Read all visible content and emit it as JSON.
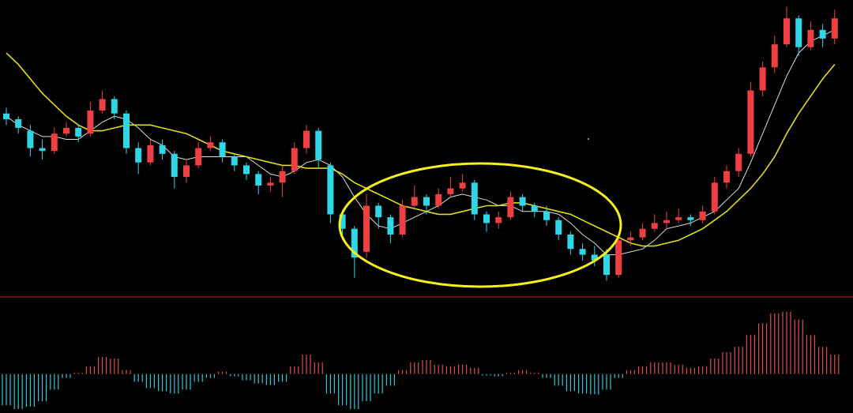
{
  "chart_data": [
    {
      "type": "candlestick",
      "ylim": [
        0,
        100
      ],
      "up_color": "#ee3f42",
      "down_color": "#2fd6e6",
      "ohlc": [
        [
          62,
          64,
          58,
          60
        ],
        [
          60,
          61,
          55,
          57
        ],
        [
          56,
          58,
          47,
          50
        ],
        [
          50,
          53,
          46,
          49
        ],
        [
          49,
          57,
          48,
          55
        ],
        [
          55,
          59,
          54,
          57
        ],
        [
          57,
          58,
          52,
          54
        ],
        [
          55,
          66,
          54,
          63
        ],
        [
          63,
          70,
          62,
          67
        ],
        [
          67,
          68,
          60,
          62
        ],
        [
          62,
          63,
          48,
          50
        ],
        [
          50,
          52,
          41,
          45
        ],
        [
          45,
          53,
          44,
          51
        ],
        [
          51,
          53,
          46,
          48
        ],
        [
          48,
          49,
          36,
          40
        ],
        [
          40,
          46,
          38,
          44
        ],
        [
          44,
          52,
          43,
          50
        ],
        [
          50,
          54,
          49,
          52
        ],
        [
          52,
          53,
          45,
          47
        ],
        [
          47,
          48,
          42,
          44
        ],
        [
          44,
          45,
          39,
          41
        ],
        [
          41,
          42,
          34,
          37
        ],
        [
          37,
          40,
          35,
          38
        ],
        [
          38,
          44,
          33,
          42
        ],
        [
          42,
          52,
          41,
          50
        ],
        [
          50,
          58,
          48,
          56
        ],
        [
          56,
          57,
          43,
          46
        ],
        [
          44,
          45,
          24,
          27
        ],
        [
          27,
          28,
          19,
          22
        ],
        [
          22,
          23,
          5,
          12
        ],
        [
          14,
          34,
          12,
          30
        ],
        [
          30,
          31,
          22,
          26
        ],
        [
          26,
          27,
          17,
          20
        ],
        [
          20,
          32,
          19,
          30
        ],
        [
          30,
          37,
          29,
          33
        ],
        [
          33,
          34,
          27,
          30
        ],
        [
          30,
          36,
          29,
          34
        ],
        [
          34,
          40,
          33,
          36
        ],
        [
          36,
          41,
          35,
          38
        ],
        [
          38,
          39,
          25,
          27
        ],
        [
          27,
          28,
          21,
          24
        ],
        [
          24,
          28,
          22,
          26
        ],
        [
          26,
          35,
          25,
          33
        ],
        [
          33,
          34,
          28,
          30
        ],
        [
          30,
          31,
          26,
          28
        ],
        [
          28,
          30,
          23,
          25
        ],
        [
          25,
          26,
          18,
          20
        ],
        [
          20,
          21,
          13,
          15
        ],
        [
          15,
          17,
          11,
          13
        ],
        [
          13,
          16,
          9,
          11
        ],
        [
          13,
          15,
          4,
          6
        ],
        [
          6,
          20,
          5,
          18
        ],
        [
          18,
          21,
          16,
          19
        ],
        [
          19,
          24,
          18,
          22
        ],
        [
          22,
          27,
          21,
          24
        ],
        [
          24,
          28,
          22,
          25
        ],
        [
          25,
          29,
          24,
          26
        ],
        [
          26,
          27,
          23,
          25
        ],
        [
          25,
          30,
          24,
          28
        ],
        [
          28,
          40,
          27,
          38
        ],
        [
          38,
          44,
          36,
          42
        ],
        [
          42,
          50,
          40,
          48
        ],
        [
          48,
          73,
          47,
          70
        ],
        [
          70,
          80,
          68,
          78
        ],
        [
          78,
          89,
          76,
          86
        ],
        [
          86,
          99,
          85,
          95
        ],
        [
          95,
          96,
          82,
          85
        ],
        [
          85,
          94,
          84,
          91
        ],
        [
          91,
          93,
          85,
          88
        ],
        [
          88,
          98,
          86,
          95
        ]
      ],
      "series": [
        {
          "color": "#dddddd",
          "values": [
            61,
            58,
            56,
            54,
            54,
            53,
            53,
            56,
            59,
            61,
            60,
            57,
            53,
            51,
            47,
            46,
            47,
            47,
            47,
            47,
            47,
            44,
            41,
            40,
            42,
            45,
            46,
            44,
            40,
            33,
            27,
            23,
            22,
            24,
            26,
            28,
            30,
            33,
            34,
            33,
            32,
            30,
            30,
            28,
            28,
            28,
            27,
            24,
            20,
            17,
            13,
            13,
            14,
            15,
            18,
            22,
            23,
            24,
            26,
            28,
            32,
            36,
            45,
            55,
            65,
            75,
            83,
            87,
            89,
            91
          ]
        },
        {
          "color": "#e2dc1e",
          "values": [
            83,
            79,
            74,
            69,
            65,
            61,
            58,
            56,
            56,
            57,
            58,
            58,
            58,
            57,
            56,
            55,
            53,
            51,
            49,
            48,
            47,
            46,
            45,
            44,
            44,
            43,
            43,
            43,
            41,
            38,
            36,
            34,
            32,
            30,
            29,
            28,
            27,
            27,
            28,
            29,
            30,
            30,
            31,
            31,
            30,
            29,
            28,
            27,
            25,
            23,
            21,
            19,
            17,
            16,
            16,
            17,
            18,
            20,
            22,
            25,
            28,
            32,
            36,
            41,
            47,
            55,
            62,
            68,
            74,
            79
          ]
        }
      ]
    },
    {
      "type": "bar",
      "ylim": [
        -50,
        100
      ],
      "up_color": "#e0504e",
      "down_color": "#2fc8d8",
      "values": [
        -40,
        -45,
        -42,
        -35,
        -20,
        -5,
        2,
        10,
        22,
        20,
        5,
        -10,
        -18,
        -22,
        -25,
        -20,
        -10,
        -5,
        3,
        -3,
        -8,
        -12,
        -14,
        -10,
        10,
        25,
        15,
        -25,
        -40,
        -45,
        -35,
        -25,
        -15,
        5,
        15,
        18,
        12,
        10,
        12,
        8,
        -2,
        -3,
        2,
        5,
        2,
        -5,
        -15,
        -22,
        -25,
        -26,
        -20,
        -5,
        5,
        10,
        15,
        15,
        12,
        8,
        10,
        20,
        28,
        35,
        50,
        65,
        78,
        80,
        70,
        50,
        35,
        25
      ]
    }
  ]
}
